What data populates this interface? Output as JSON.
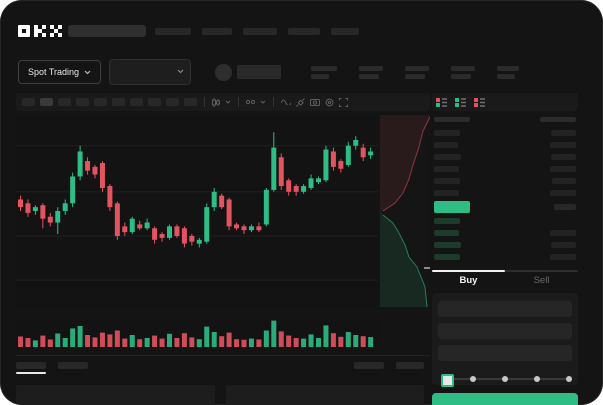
{
  "window": {
    "page_background": "#ffffff",
    "app_background": "#141414"
  },
  "colors": {
    "green": "#2EBD85",
    "red": "#E35461",
    "skeleton": "#282828",
    "grid": "#1f1f1f"
  },
  "header": {
    "logo": "OKX",
    "nav_pills": [
      36,
      30,
      34,
      32,
      28
    ],
    "search_width": 78
  },
  "subheader": {
    "market_selector_label": "Spot Trading",
    "stats": [
      [
        26,
        18
      ],
      [
        24,
        20
      ],
      [
        24,
        20
      ],
      [
        24,
        20
      ],
      [
        22,
        18
      ]
    ]
  },
  "chart_toolbar": {
    "timeframe_count": 10,
    "active_timeframe": 1,
    "icons": [
      "candle-type-icon",
      "indicators-icon",
      "wave-icon",
      "draw-icon",
      "camera-icon",
      "settings-icon",
      "fullscreen-icon"
    ]
  },
  "order_book": {
    "view_modes": [
      "book-all-icon",
      "book-bids-icon",
      "book-asks-icon"
    ],
    "header_bars": [
      36,
      36
    ],
    "ask_rows": [
      [
        26,
        25
      ],
      [
        24,
        26
      ],
      [
        27,
        25
      ],
      [
        25,
        26
      ],
      [
        26,
        24
      ],
      [
        25,
        26
      ]
    ],
    "price_bar": {
      "width": 36,
      "right_bar": 22
    },
    "bid_rows": [
      [
        26,
        0
      ],
      [
        25,
        26
      ],
      [
        27,
        25
      ],
      [
        26,
        26
      ]
    ]
  },
  "trade_panel": {
    "tabs": {
      "buy": "Buy",
      "sell": "Sell"
    },
    "active_tab": "Buy",
    "field_count": 3,
    "slider": {
      "dots": 4,
      "position_percent": 0
    },
    "submit_label": ""
  },
  "chart_bottom": {
    "left_tabs": [
      30,
      30
    ],
    "active_left_tab": 0,
    "right_pills": [
      30,
      28
    ]
  },
  "bottom_cards": 2,
  "chart_data": {
    "type": "candlestick",
    "title": "",
    "ylim": [
      0,
      100
    ],
    "gridlines": [
      14,
      37,
      60,
      84
    ],
    "candles": [
      [
        56,
        58,
        50,
        52
      ],
      [
        54,
        56,
        47,
        49
      ],
      [
        50,
        53,
        48,
        52
      ],
      [
        53,
        54,
        41,
        46
      ],
      [
        47,
        49,
        42,
        44
      ],
      [
        44,
        52,
        38,
        50
      ],
      [
        50,
        56,
        48,
        54
      ],
      [
        54,
        70,
        52,
        68
      ],
      [
        68,
        84,
        66,
        81
      ],
      [
        76,
        78,
        69,
        71
      ],
      [
        73,
        74,
        67,
        69
      ],
      [
        75,
        76,
        60,
        62
      ],
      [
        63,
        64,
        50,
        52
      ],
      [
        54,
        55,
        35,
        37
      ],
      [
        42,
        44,
        37,
        39
      ],
      [
        39,
        47,
        38,
        46
      ],
      [
        43,
        45,
        40,
        41
      ],
      [
        41,
        46,
        40,
        44
      ],
      [
        41,
        42,
        33,
        35
      ],
      [
        38,
        39,
        34,
        36
      ],
      [
        36,
        43,
        35,
        42
      ],
      [
        42,
        43,
        36,
        37
      ],
      [
        41,
        42,
        31,
        33
      ],
      [
        37,
        38,
        32,
        34
      ],
      [
        33,
        36,
        31,
        35
      ],
      [
        34,
        54,
        33,
        52
      ],
      [
        52,
        62,
        50,
        60
      ],
      [
        58,
        59,
        51,
        52
      ],
      [
        56,
        57,
        40,
        42
      ],
      [
        43,
        44,
        40,
        41
      ],
      [
        42,
        43,
        38,
        40
      ],
      [
        40,
        43,
        39,
        42
      ],
      [
        42,
        44,
        39,
        40
      ],
      [
        43,
        62,
        42,
        61
      ],
      [
        61,
        91,
        60,
        83
      ],
      [
        78,
        80,
        61,
        63
      ],
      [
        66,
        67,
        58,
        60
      ],
      [
        63,
        64,
        58,
        60
      ],
      [
        60,
        64,
        59,
        63
      ],
      [
        62,
        69,
        61,
        67
      ],
      [
        65,
        68,
        64,
        67
      ],
      [
        66,
        84,
        65,
        82
      ],
      [
        81,
        83,
        71,
        73
      ],
      [
        76,
        77,
        70,
        72
      ],
      [
        74,
        86,
        73,
        84
      ],
      [
        84,
        89,
        82,
        87
      ],
      [
        83,
        85,
        76,
        78
      ],
      [
        79,
        83,
        77,
        81
      ]
    ],
    "volume": [
      35,
      30,
      22,
      38,
      25,
      45,
      30,
      62,
      70,
      40,
      32,
      48,
      42,
      55,
      28,
      40,
      26,
      30,
      38,
      28,
      44,
      30,
      46,
      32,
      26,
      68,
      50,
      36,
      48,
      26,
      24,
      28,
      25,
      55,
      88,
      52,
      38,
      30,
      28,
      42,
      30,
      72,
      46,
      34,
      50,
      40,
      36,
      33
    ],
    "depth": {
      "asks": [
        [
          50,
          2
        ],
        [
          43,
          16
        ],
        [
          39,
          32
        ],
        [
          33,
          50
        ],
        [
          29,
          64
        ],
        [
          23,
          78
        ],
        [
          15,
          88
        ],
        [
          3,
          96
        ]
      ],
      "bids": [
        [
          3,
          100
        ],
        [
          13,
          108
        ],
        [
          19,
          118
        ],
        [
          25,
          130
        ],
        [
          29,
          142
        ],
        [
          37,
          152
        ],
        [
          41,
          162
        ],
        [
          45,
          172
        ],
        [
          47,
          192
        ]
      ],
      "marker_y": 152
    }
  }
}
